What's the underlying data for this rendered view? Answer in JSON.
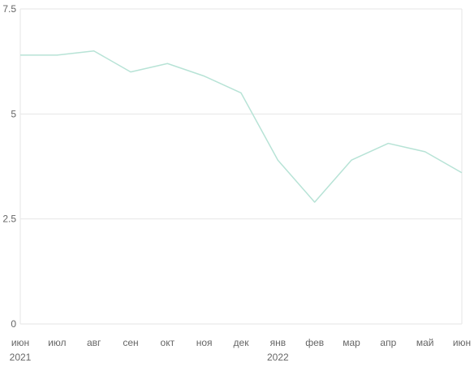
{
  "chart_data": {
    "type": "line",
    "x": [
      "июн",
      "июл",
      "авг",
      "сен",
      "окт",
      "ноя",
      "дек",
      "янв",
      "фев",
      "мар",
      "апр",
      "май",
      "июн"
    ],
    "x_year_labels": [
      {
        "index": 0,
        "label": "2021"
      },
      {
        "index": 7,
        "label": "2022"
      }
    ],
    "series": [
      {
        "values": [
          6.4,
          6.4,
          6.5,
          6.0,
          6.2,
          5.9,
          5.5,
          3.9,
          2.9,
          3.9,
          4.3,
          4.1,
          3.6
        ],
        "color": "#b7e3d6"
      }
    ],
    "ylim": [
      0,
      7.5
    ],
    "y_ticks": [
      0,
      2.5,
      5,
      7.5
    ],
    "y_tick_labels": [
      "0",
      "2.5",
      "5",
      "7.5"
    ],
    "grid": true,
    "title": "",
    "xlabel": "",
    "ylabel": ""
  }
}
